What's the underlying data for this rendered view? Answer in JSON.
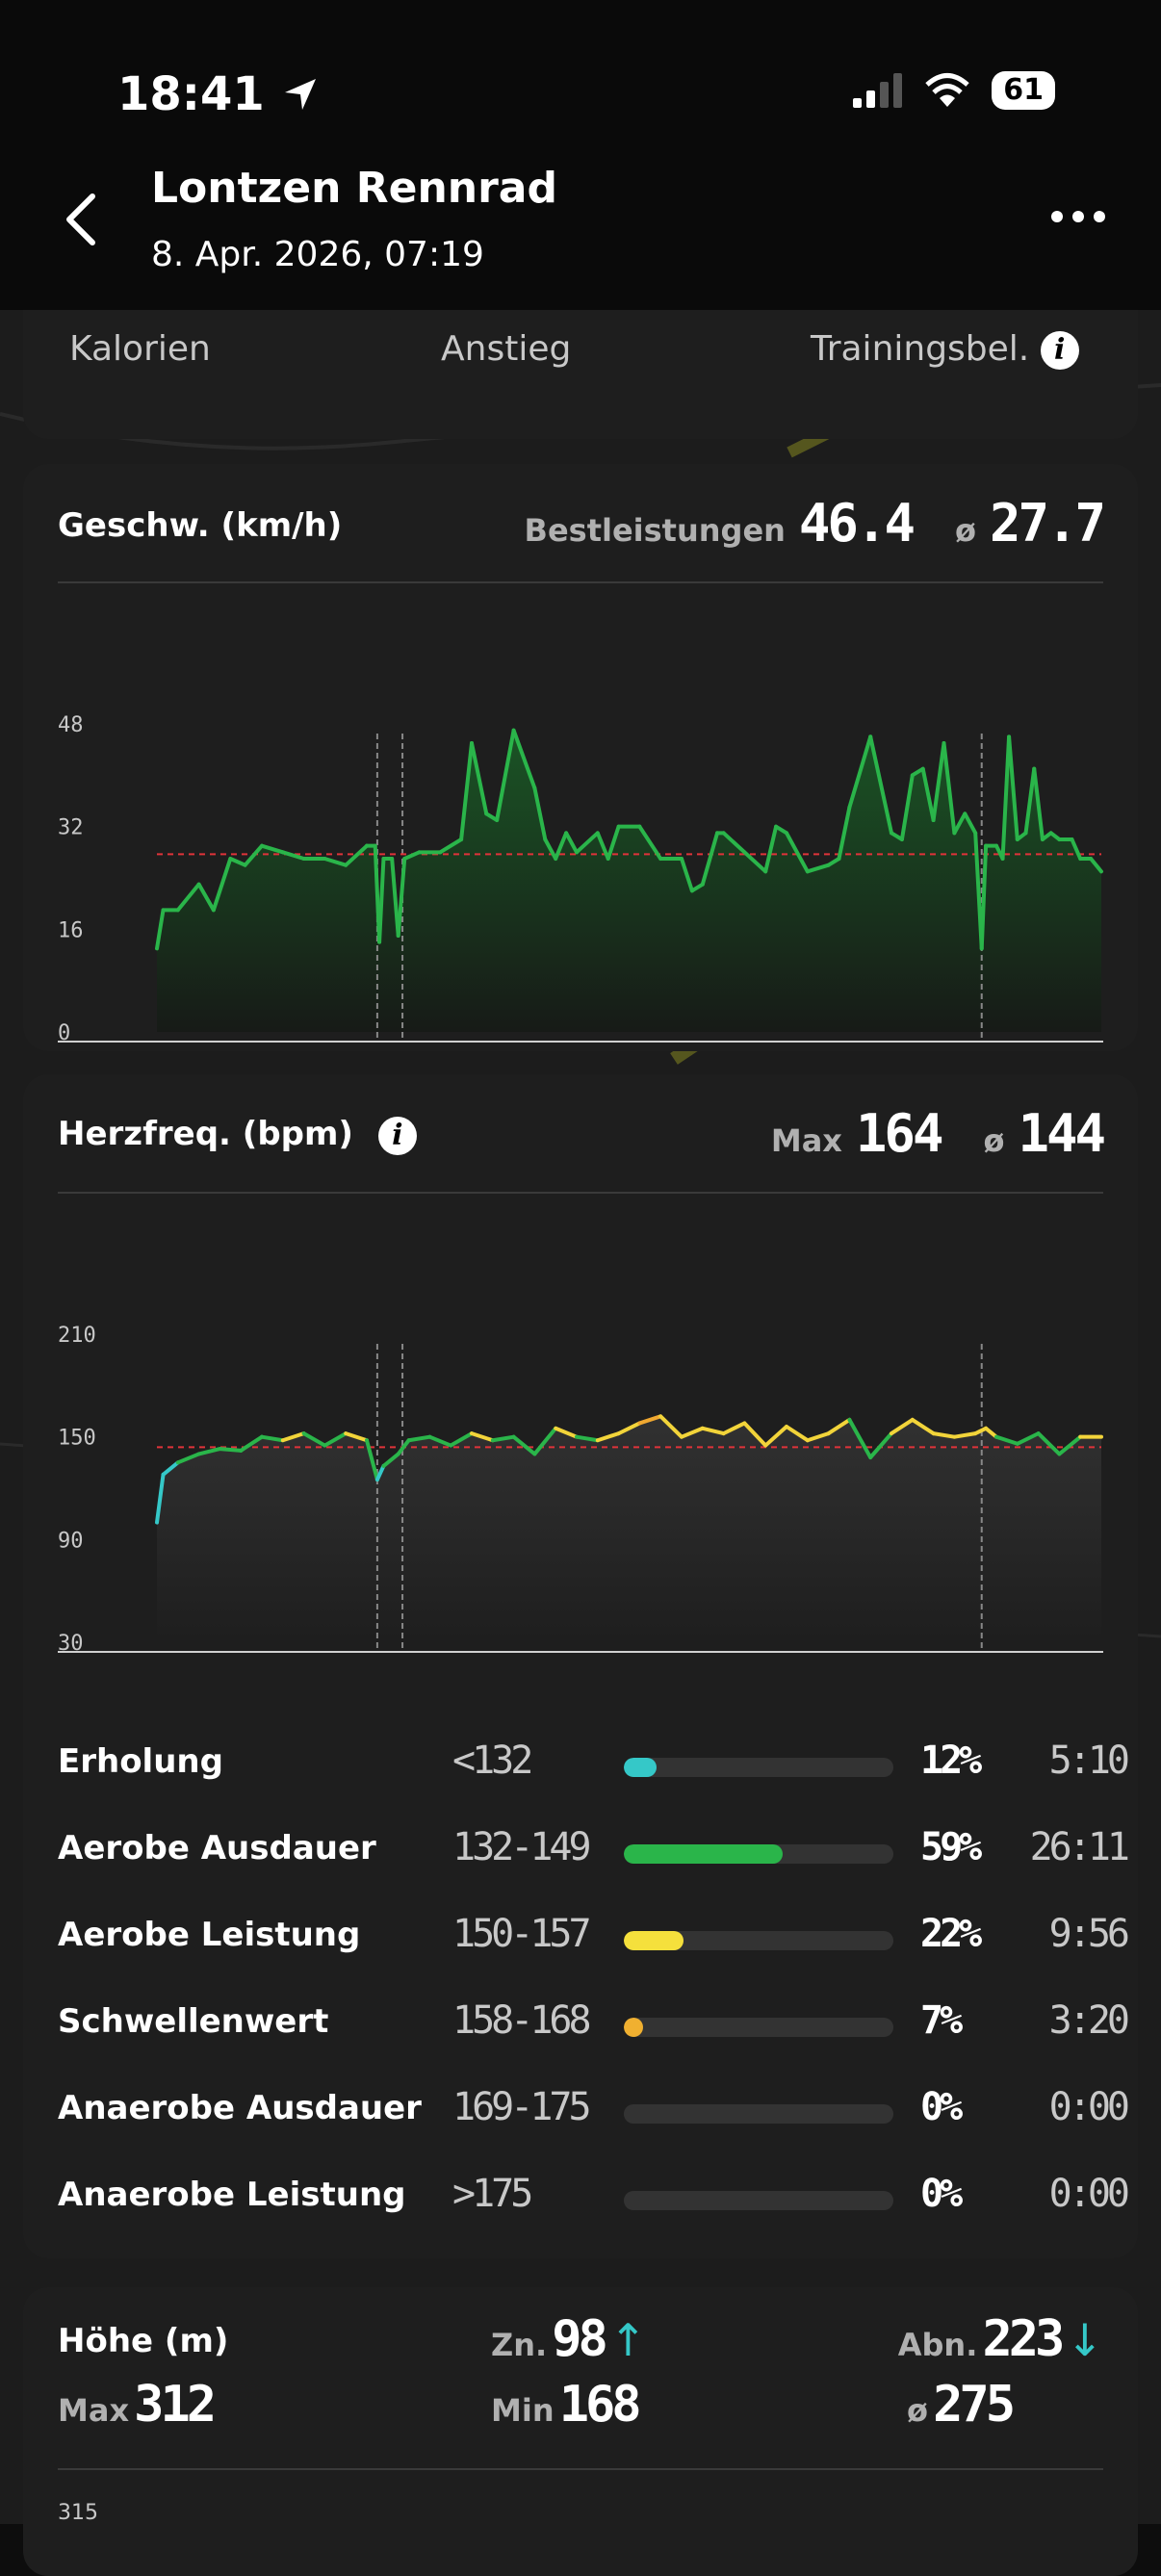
{
  "status_bar": {
    "time": "18:41",
    "battery": "61"
  },
  "header": {
    "title": "Lontzen Rennrad",
    "subtitle": "8. Apr. 2026, 07:19"
  },
  "summary": {
    "labels": [
      "Kalorien",
      "Anstieg",
      "Trainingsbel."
    ]
  },
  "speed": {
    "title": "Geschw. (km/h)",
    "best_label": "Bestleistungen",
    "best_value": "46.4",
    "avg_symbol": "ø",
    "avg_value": "27.7",
    "chart_data": {
      "type": "area",
      "y_ticks": [
        "48",
        "32",
        "16",
        "0"
      ],
      "x_ticks": [
        "0",
        "15",
        "30",
        "45"
      ],
      "ylim": [
        0,
        48
      ],
      "xlim": [
        0,
        45
      ],
      "average": 27.7,
      "pause_markers": [
        10.5,
        11.7,
        39.3
      ],
      "x": [
        0,
        0.3,
        1,
        2,
        2.7,
        3.5,
        4.2,
        5,
        6,
        7,
        8,
        9,
        10,
        10.4,
        10.6,
        10.8,
        11.2,
        11.5,
        11.8,
        12.5,
        13.5,
        14.5,
        15,
        15.7,
        16.2,
        17,
        18,
        18.5,
        19,
        19.5,
        20,
        21,
        21.5,
        22,
        23,
        24,
        25,
        25.5,
        26,
        26.7,
        27,
        28,
        29,
        29.5,
        30,
        31,
        32,
        32.5,
        33,
        34,
        35,
        35.5,
        36,
        36.5,
        37,
        37.5,
        38,
        38.5,
        39,
        39.3,
        39.5,
        40,
        40.3,
        40.6,
        41,
        41.4,
        41.8,
        42.2,
        42.6,
        43,
        43.6,
        44,
        44.5,
        45
      ],
      "y": [
        13,
        19,
        19,
        23,
        19,
        27,
        26,
        29,
        28,
        27,
        27,
        26,
        29,
        29,
        14,
        27,
        27,
        15,
        27,
        28,
        28,
        30,
        45,
        34,
        33,
        47,
        38,
        30,
        27,
        31,
        28,
        31,
        27,
        32,
        32,
        27,
        27,
        22,
        23,
        31,
        31,
        28,
        25,
        32,
        31,
        25,
        26,
        27,
        35,
        46,
        31,
        30,
        40,
        41,
        33,
        45,
        31,
        34,
        31,
        13,
        29,
        29,
        27,
        46,
        30,
        31,
        41,
        30,
        31,
        30,
        30,
        27,
        27,
        25
      ]
    }
  },
  "heart_rate": {
    "title": "Herzfreq. (bpm)",
    "max_label": "Max",
    "max_value": "164",
    "avg_symbol": "ø",
    "avg_value": "144",
    "chart_data": {
      "type": "line",
      "y_ticks": [
        "210",
        "150",
        "90",
        "30"
      ],
      "x_ticks": [
        "0",
        "15",
        "30",
        "45"
      ],
      "ylim": [
        30,
        210
      ],
      "xlim": [
        0,
        45
      ],
      "average": 144,
      "pause_markers": [
        10.5,
        11.7,
        39.3
      ],
      "x": [
        0,
        0.3,
        1,
        2,
        3,
        4,
        5,
        6,
        7,
        8,
        9,
        10,
        10.5,
        10.8,
        11.5,
        12,
        13,
        14,
        15,
        16,
        17,
        18,
        19,
        20,
        21,
        22,
        23,
        24,
        25,
        26,
        27,
        28,
        29,
        30,
        31,
        32,
        33,
        34,
        35,
        36,
        37,
        38,
        39,
        39.5,
        40,
        41,
        42,
        43,
        44,
        45
      ],
      "y": [
        100,
        128,
        135,
        140,
        143,
        142,
        150,
        148,
        152,
        145,
        152,
        148,
        125,
        133,
        140,
        148,
        150,
        145,
        152,
        148,
        150,
        140,
        155,
        150,
        148,
        152,
        158,
        162,
        150,
        155,
        152,
        158,
        145,
        156,
        148,
        152,
        160,
        138,
        152,
        160,
        152,
        150,
        152,
        155,
        150,
        146,
        152,
        140,
        150,
        150
      ],
      "zone_colors": [
        "#35c8c8",
        "#2ab54a",
        "#f2d43a",
        "#f0a830"
      ]
    },
    "zones": [
      {
        "name": "Erholung",
        "range": "<132",
        "percent": "12%",
        "fraction": 0.12,
        "time": "5:10",
        "color": "#35c8c8"
      },
      {
        "name": "Aerobe Ausdauer",
        "range": "132-149",
        "percent": "59%",
        "fraction": 0.59,
        "time": "26:11",
        "color": "#2ab54a"
      },
      {
        "name": "Aerobe Leistung",
        "range": "150-157",
        "percent": "22%",
        "fraction": 0.22,
        "time": "9:56",
        "color": "#f5e03c"
      },
      {
        "name": "Schwellenwert",
        "range": "158-168",
        "percent": "7%",
        "fraction": 0.07,
        "time": "3:20",
        "color": "#f0b030"
      },
      {
        "name": "Anaerobe Ausdauer",
        "range": "169-175",
        "percent": "0%",
        "fraction": 0,
        "time": "0:00",
        "color": "#e06030"
      },
      {
        "name": "Anaerobe Leistung",
        "range": ">175",
        "percent": "0%",
        "fraction": 0,
        "time": "0:00",
        "color": "#d03030"
      }
    ]
  },
  "altitude": {
    "title": "Höhe (m)",
    "ascent_label": "Zn.",
    "ascent_value": "98",
    "ascent_arrow": "↑",
    "descent_label": "Abn.",
    "descent_value": "223",
    "descent_arrow": "↓",
    "max_label": "Max",
    "max_value": "312",
    "min_label": "Min",
    "min_value": "168",
    "avg_symbol": "ø",
    "avg_value": "275",
    "y_tick_top": "315"
  }
}
